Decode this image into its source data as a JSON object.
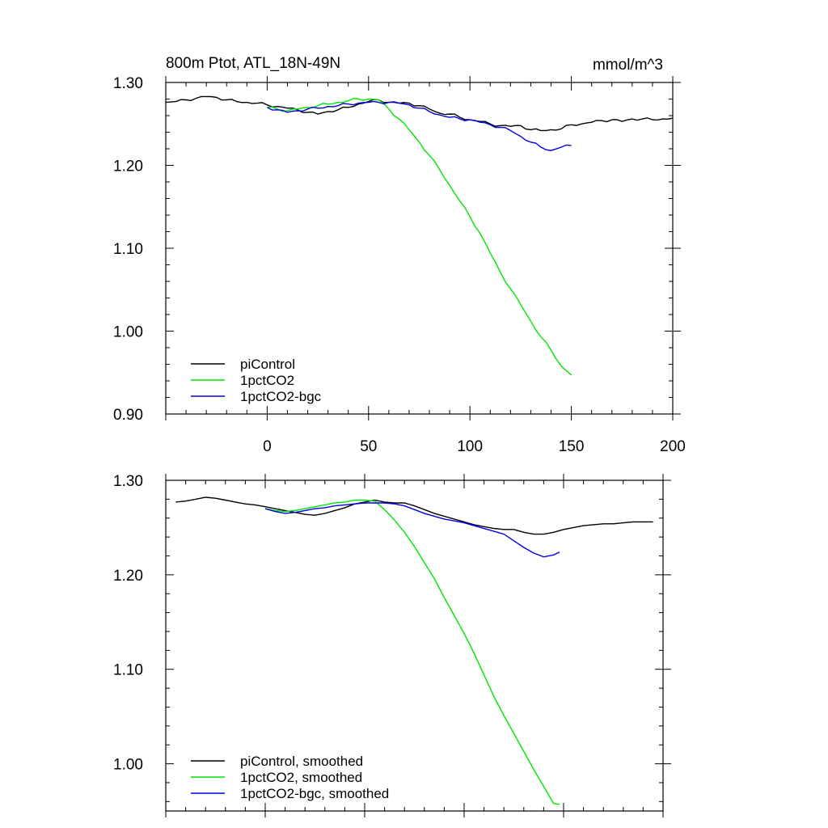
{
  "chart_data": [
    {
      "type": "line",
      "title": "800m Ptot, ATL_18N-49N",
      "units": "mmol/m^3",
      "xlim": [
        -50,
        200
      ],
      "ylim": [
        0.9,
        1.3
      ],
      "xticks": [
        0,
        50,
        100,
        150,
        200
      ],
      "xtick_labels": [
        "0",
        "50",
        "100",
        "150",
        "200"
      ],
      "yticks": [
        0.9,
        1.0,
        1.1,
        1.2,
        1.3
      ],
      "ytick_labels": [
        "0.90",
        "1.00",
        "1.10",
        "1.20",
        "1.30"
      ],
      "legend_position": "bottom-left",
      "series": [
        {
          "name": "piControl",
          "color": "#000000",
          "x": [
            -50,
            -45,
            -40,
            -35,
            -30,
            -25,
            -20,
            -15,
            -10,
            -5,
            0,
            5,
            10,
            15,
            20,
            25,
            30,
            35,
            40,
            45,
            50,
            55,
            60,
            65,
            70,
            75,
            80,
            85,
            90,
            95,
            100,
            105,
            110,
            115,
            120,
            125,
            130,
            135,
            140,
            145,
            150,
            155,
            160,
            165,
            170,
            175,
            180,
            185,
            190,
            195,
            200
          ],
          "values": [
            1.276,
            1.277,
            1.279,
            1.281,
            1.283,
            1.282,
            1.279,
            1.277,
            1.276,
            1.275,
            1.273,
            1.271,
            1.269,
            1.267,
            1.264,
            1.262,
            1.265,
            1.267,
            1.27,
            1.274,
            1.277,
            1.279,
            1.276,
            1.275,
            1.275,
            1.272,
            1.268,
            1.263,
            1.262,
            1.258,
            1.255,
            1.253,
            1.25,
            1.248,
            1.247,
            1.248,
            1.243,
            1.242,
            1.243,
            1.244,
            1.249,
            1.25,
            1.252,
            1.254,
            1.255,
            1.253,
            1.256,
            1.256,
            1.255,
            1.256,
            1.257
          ]
        },
        {
          "name": "1pctCO2",
          "color": "#00e600",
          "x": [
            0,
            5,
            10,
            15,
            20,
            25,
            30,
            35,
            40,
            45,
            50,
            55,
            60,
            65,
            70,
            75,
            80,
            85,
            90,
            95,
            100,
            105,
            110,
            115,
            120,
            125,
            130,
            135,
            140,
            145,
            150
          ],
          "values": [
            1.27,
            1.268,
            1.266,
            1.268,
            1.27,
            1.272,
            1.274,
            1.276,
            1.278,
            1.28,
            1.28,
            1.279,
            1.268,
            1.256,
            1.243,
            1.228,
            1.212,
            1.195,
            1.176,
            1.157,
            1.138,
            1.118,
            1.094,
            1.071,
            1.051,
            1.032,
            1.012,
            0.993,
            0.977,
            0.958,
            0.947
          ]
        },
        {
          "name": "1pctCO2-bgc",
          "color": "#0000e6",
          "x": [
            0,
            5,
            10,
            15,
            20,
            25,
            30,
            35,
            40,
            45,
            50,
            55,
            60,
            65,
            70,
            75,
            80,
            85,
            90,
            95,
            100,
            105,
            110,
            115,
            120,
            125,
            130,
            135,
            140,
            145,
            150
          ],
          "values": [
            1.27,
            1.267,
            1.264,
            1.266,
            1.268,
            1.269,
            1.271,
            1.272,
            1.274,
            1.275,
            1.276,
            1.276,
            1.276,
            1.275,
            1.273,
            1.269,
            1.265,
            1.261,
            1.258,
            1.256,
            1.255,
            1.252,
            1.249,
            1.246,
            1.242,
            1.235,
            1.228,
            1.222,
            1.218,
            1.222,
            1.224
          ]
        }
      ]
    },
    {
      "type": "line",
      "title": "",
      "xlim": [
        -50,
        200
      ],
      "ylim": [
        0.95,
        1.3
      ],
      "xticks": [
        0,
        50,
        100,
        150,
        200
      ],
      "yticks": [
        1.0,
        1.1,
        1.2,
        1.3
      ],
      "ytick_labels": [
        "1.00",
        "1.10",
        "1.20",
        "1.30"
      ],
      "legend_position": "bottom-left",
      "series": [
        {
          "name": "piControl, smoothed",
          "color": "#000000",
          "x": [
            -45,
            -40,
            -35,
            -30,
            -25,
            -20,
            -15,
            -10,
            -5,
            0,
            5,
            10,
            15,
            20,
            25,
            30,
            35,
            40,
            45,
            50,
            55,
            60,
            65,
            70,
            75,
            80,
            85,
            90,
            95,
            100,
            105,
            110,
            115,
            120,
            125,
            130,
            135,
            140,
            145,
            150,
            155,
            160,
            165,
            170,
            175,
            180,
            185,
            190,
            195
          ],
          "values": [
            1.277,
            1.278,
            1.28,
            1.282,
            1.281,
            1.279,
            1.277,
            1.275,
            1.274,
            1.272,
            1.27,
            1.268,
            1.266,
            1.264,
            1.263,
            1.265,
            1.268,
            1.271,
            1.275,
            1.277,
            1.279,
            1.277,
            1.276,
            1.276,
            1.273,
            1.269,
            1.265,
            1.262,
            1.259,
            1.256,
            1.253,
            1.251,
            1.249,
            1.248,
            1.248,
            1.245,
            1.243,
            1.243,
            1.245,
            1.248,
            1.25,
            1.252,
            1.253,
            1.254,
            1.254,
            1.255,
            1.256,
            1.256,
            1.256
          ]
        },
        {
          "name": "1pctCO2, smoothed",
          "color": "#00e600",
          "x": [
            0,
            5,
            10,
            15,
            20,
            25,
            30,
            35,
            40,
            45,
            50,
            55,
            60,
            65,
            70,
            75,
            80,
            85,
            90,
            95,
            100,
            105,
            110,
            115,
            120,
            125,
            130,
            135,
            140,
            145,
            148
          ],
          "values": [
            1.27,
            1.268,
            1.267,
            1.268,
            1.27,
            1.272,
            1.274,
            1.276,
            1.277,
            1.279,
            1.279,
            1.278,
            1.269,
            1.258,
            1.245,
            1.23,
            1.213,
            1.196,
            1.176,
            1.157,
            1.138,
            1.117,
            1.094,
            1.071,
            1.051,
            1.032,
            1.013,
            0.994,
            0.976,
            0.958,
            0.957
          ]
        },
        {
          "name": "1pctCO2-bgc, smoothed",
          "color": "#0000e6",
          "x": [
            0,
            5,
            10,
            15,
            20,
            25,
            30,
            35,
            40,
            45,
            50,
            55,
            60,
            65,
            70,
            75,
            80,
            85,
            90,
            95,
            100,
            105,
            110,
            115,
            120,
            125,
            130,
            135,
            140,
            145,
            148
          ],
          "values": [
            1.27,
            1.267,
            1.265,
            1.266,
            1.268,
            1.27,
            1.271,
            1.273,
            1.274,
            1.275,
            1.276,
            1.276,
            1.276,
            1.275,
            1.273,
            1.269,
            1.265,
            1.262,
            1.259,
            1.257,
            1.255,
            1.252,
            1.249,
            1.246,
            1.243,
            1.236,
            1.229,
            1.223,
            1.219,
            1.221,
            1.224
          ]
        }
      ]
    }
  ]
}
